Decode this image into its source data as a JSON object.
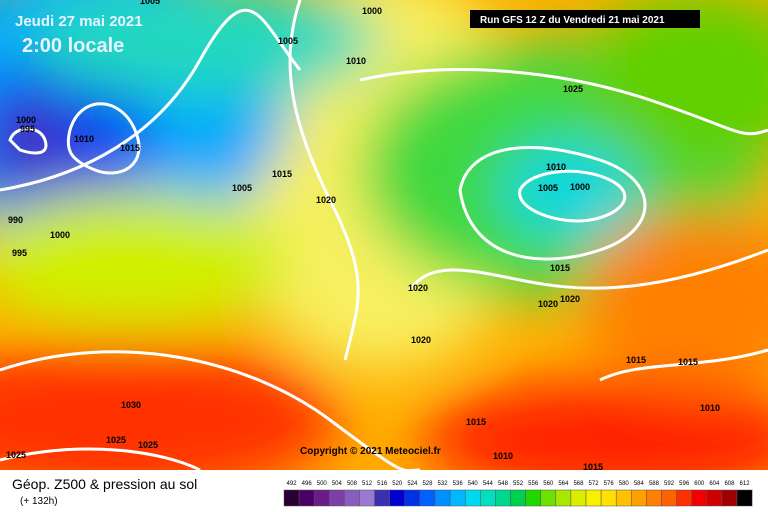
{
  "header": {
    "date": "Jeudi 27 mai 2021",
    "time": "2:00 locale",
    "run": "Run GFS 12 Z du Vendredi 21 mai 2021"
  },
  "copyright": "Copyright © 2021 Meteociel.fr",
  "footer": {
    "title": "Géop. Z500 & pression au sol",
    "lead": "(+ 132h)"
  },
  "colorbar": {
    "values": [
      492,
      496,
      500,
      504,
      508,
      512,
      516,
      520,
      524,
      528,
      532,
      536,
      540,
      544,
      548,
      552,
      556,
      560,
      564,
      568,
      572,
      576,
      580,
      584,
      588,
      592,
      596,
      600,
      604,
      608,
      612
    ],
    "colors": [
      "#2a0030",
      "#4b0063",
      "#6a1a8a",
      "#7b3fa8",
      "#8a5cc0",
      "#9a7ad0",
      "#3b2fb0",
      "#0000d0",
      "#0030e8",
      "#0060ff",
      "#0090ff",
      "#00b8ff",
      "#00d8f0",
      "#00e0c0",
      "#00d890",
      "#00d050",
      "#20d800",
      "#70e000",
      "#a8e800",
      "#d8f000",
      "#f8f000",
      "#ffe000",
      "#ffc000",
      "#ffa000",
      "#ff8000",
      "#ff6000",
      "#ff3000",
      "#f00000",
      "#d00000",
      "#a00000",
      "#000000"
    ]
  },
  "isobars": {
    "labels": [
      "1005",
      "1000",
      "1005",
      "1010",
      "1025",
      "1000",
      "995",
      "1010",
      "1015",
      "1010",
      "1005",
      "1000",
      "1005",
      "1015",
      "1020",
      "990",
      "1000",
      "995",
      "1015",
      "1020",
      "1020",
      "1020",
      "1020",
      "1015",
      "1015",
      "1030",
      "1010",
      "1025",
      "1025",
      "1015",
      "1025",
      "1010",
      "1015"
    ]
  }
}
